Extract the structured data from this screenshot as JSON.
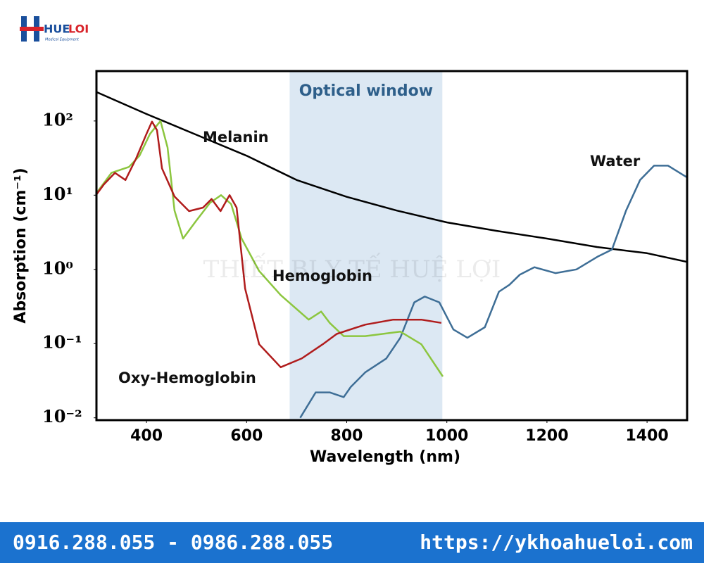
{
  "logo": {
    "first": "HUE",
    "second": "LOI",
    "tagline": "Medical Equipment"
  },
  "watermark": "THIẾT BỊ Y TẾ HUỆ LỢI",
  "chart_data": {
    "type": "line",
    "xlabel": "Wavelength (nm)",
    "ylabel": "Absorption (cm⁻¹)",
    "yscale": "log",
    "xlim": [
      300,
      1480
    ],
    "ylim": [
      0.0093,
      470
    ],
    "xticks": [
      400,
      600,
      800,
      1000,
      1200,
      1400
    ],
    "yticks": [
      {
        "value": 0.01,
        "label": "10⁻²"
      },
      {
        "value": 0.1,
        "label": "10⁻¹"
      },
      {
        "value": 1,
        "label": "10⁰"
      },
      {
        "value": 10,
        "label": "10¹"
      },
      {
        "value": 100,
        "label": "10²"
      }
    ],
    "shaded_region": {
      "label": "Optical window",
      "x": [
        686,
        991
      ],
      "color": "#dce8f3"
    },
    "series": [
      {
        "name": "Melanin",
        "color": "#000000",
        "x": [
          300,
          400,
          500,
          600,
          700,
          800,
          900,
          1000,
          1100,
          1200,
          1300,
          1400,
          1480
        ],
        "values": [
          245,
          124,
          65,
          34,
          16,
          9.5,
          6.2,
          4.3,
          3.3,
          2.6,
          2.0,
          1.65,
          1.26
        ]
      },
      {
        "name": "Water",
        "color": "#3e6e96",
        "x": [
          707,
          738,
          766,
          794,
          808,
          837,
          879,
          907,
          935,
          956,
          985,
          1013,
          1041,
          1076,
          1104,
          1125,
          1146,
          1175,
          1217,
          1259,
          1301,
          1330,
          1358,
          1386,
          1414,
          1442,
          1479
        ],
        "values": [
          0.01,
          0.022,
          0.022,
          0.019,
          0.026,
          0.041,
          0.063,
          0.12,
          0.36,
          0.43,
          0.36,
          0.155,
          0.12,
          0.166,
          0.5,
          0.62,
          0.85,
          1.07,
          0.89,
          1.0,
          1.48,
          1.85,
          6.2,
          16,
          25,
          25,
          17.5
        ]
      },
      {
        "name": "Hemoglobin",
        "color": "#8cc63f",
        "x": [
          297,
          330,
          365,
          386,
          407,
          428,
          442,
          456,
          473,
          498,
          527,
          549,
          569,
          590,
          625,
          668,
          724,
          749,
          766,
          794,
          837,
          907,
          949,
          992
        ],
        "values": [
          10,
          20,
          24,
          34,
          67,
          100,
          44,
          6.2,
          2.6,
          4.4,
          7.9,
          10,
          7.6,
          2.6,
          0.95,
          0.45,
          0.21,
          0.27,
          0.19,
          0.126,
          0.126,
          0.145,
          0.098,
          0.036
        ]
      },
      {
        "name": "Oxy-Hemoglobin",
        "color": "#b01c1c",
        "x": [
          297,
          315,
          337,
          358,
          379,
          400,
          411,
          421,
          431,
          456,
          485,
          513,
          530,
          548,
          566,
          580,
          597,
          625,
          668,
          710,
          752,
          780,
          837,
          893,
          949,
          989
        ],
        "values": [
          9.6,
          14,
          20,
          16,
          31,
          67,
          98,
          75,
          23,
          9.6,
          6.1,
          6.8,
          8.9,
          6.1,
          10,
          6.8,
          0.55,
          0.098,
          0.048,
          0.063,
          0.098,
          0.135,
          0.18,
          0.21,
          0.21,
          0.19
        ]
      }
    ]
  },
  "footer": {
    "phone": "0916.288.055 - 0986.288.055",
    "url": "https://ykhoahueloi.com"
  }
}
